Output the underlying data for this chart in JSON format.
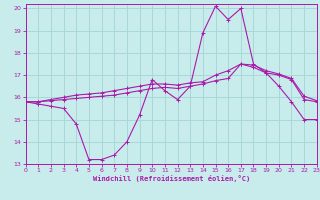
{
  "xlabel": "Windchill (Refroidissement éolien,°C)",
  "xlim": [
    0,
    23
  ],
  "ylim": [
    13,
    20.2
  ],
  "yticks": [
    13,
    14,
    15,
    16,
    17,
    18,
    19,
    20
  ],
  "xticks": [
    0,
    1,
    2,
    3,
    4,
    5,
    6,
    7,
    8,
    9,
    10,
    11,
    12,
    13,
    14,
    15,
    16,
    17,
    18,
    19,
    20,
    21,
    22,
    23
  ],
  "bg_color": "#c8ecec",
  "grid_color": "#a8d8d8",
  "line_color": "#aa1aaa",
  "line1_y": [
    15.8,
    15.7,
    15.6,
    15.5,
    14.8,
    13.2,
    13.2,
    13.4,
    14.0,
    15.2,
    16.8,
    16.3,
    15.9,
    16.5,
    18.9,
    20.1,
    19.5,
    20.0,
    17.5,
    17.1,
    16.5,
    15.8,
    15.0,
    15.0
  ],
  "line2_y": [
    15.8,
    15.8,
    15.85,
    15.9,
    15.95,
    16.0,
    16.05,
    16.1,
    16.2,
    16.3,
    16.4,
    16.45,
    16.4,
    16.5,
    16.6,
    16.75,
    16.85,
    17.5,
    17.35,
    17.1,
    17.0,
    16.8,
    15.9,
    15.8
  ],
  "line3_y": [
    15.8,
    15.8,
    15.9,
    16.0,
    16.1,
    16.15,
    16.2,
    16.3,
    16.4,
    16.5,
    16.6,
    16.6,
    16.55,
    16.65,
    16.7,
    17.0,
    17.2,
    17.5,
    17.45,
    17.2,
    17.05,
    16.85,
    16.05,
    15.85
  ]
}
